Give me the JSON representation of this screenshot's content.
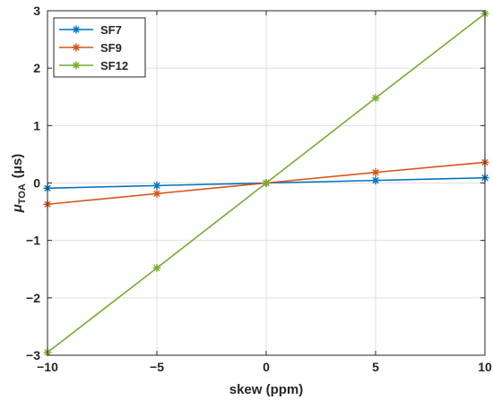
{
  "chart_data": {
    "type": "line",
    "x": [
      -10,
      -5,
      0,
      5,
      10
    ],
    "series": [
      {
        "name": "SF7",
        "color": "#0072BD",
        "values": [
          -0.09,
          -0.045,
          0,
          0.045,
          0.09
        ]
      },
      {
        "name": "SF9",
        "color": "#D95319",
        "values": [
          -0.37,
          -0.185,
          0,
          0.185,
          0.36
        ]
      },
      {
        "name": "SF12",
        "color": "#77AC30",
        "values": [
          -2.95,
          -1.48,
          0,
          1.48,
          2.95
        ]
      }
    ],
    "xlabel": "skew (ppm)",
    "ylabel": {
      "base": "μ",
      "subscript": "TOA",
      "units": "(μs)"
    },
    "xlim": [
      -10,
      10
    ],
    "ylim": [
      -3,
      3
    ],
    "xticks": [
      -10,
      -5,
      0,
      5,
      10
    ],
    "yticks": [
      -3,
      -2,
      -1,
      0,
      1,
      2,
      3
    ],
    "xtick_labels": [
      "−10",
      "−5",
      "0",
      "5",
      "10"
    ],
    "ytick_labels": [
      "−3",
      "−2",
      "−1",
      "0",
      "1",
      "2",
      "3"
    ],
    "grid": true,
    "legend_position": "top-left",
    "marker": "asterisk"
  }
}
